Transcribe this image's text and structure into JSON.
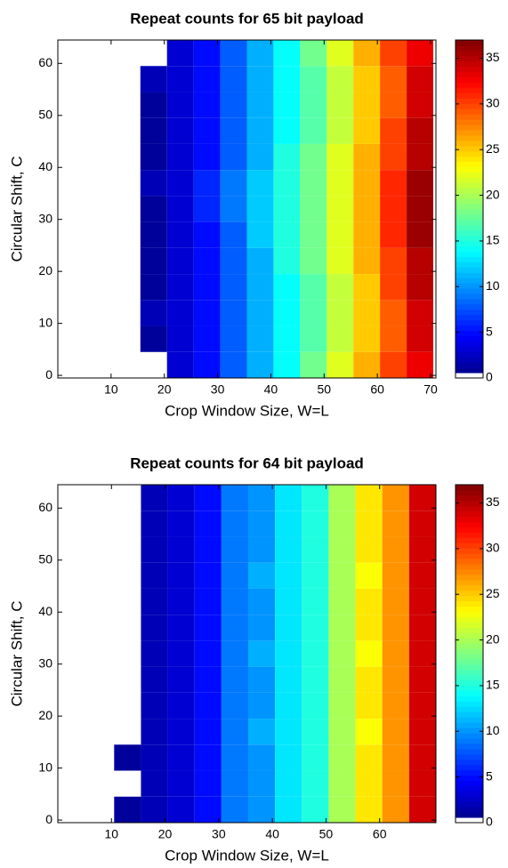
{
  "chart_data": [
    {
      "type": "heatmap",
      "title": "Repeat counts for 65 bit payload",
      "x_label": "Crop Window Size, W=L",
      "y_label": "Circular Shift, C",
      "x_edges": [
        0.5,
        5.5,
        10.5,
        15.5,
        20.5,
        25.5,
        30.5,
        35.5,
        40.5,
        45.5,
        50.5,
        55.5,
        60.5,
        65.5,
        70.5
      ],
      "y_edges": [
        -0.5,
        4.5,
        9.5,
        14.5,
        19.5,
        24.5,
        29.5,
        34.5,
        39.5,
        44.5,
        49.5,
        54.5,
        59.5,
        64.5
      ],
      "z": [
        [
          null,
          null,
          null,
          null,
          3,
          5,
          8,
          11,
          14,
          18,
          22,
          26,
          30,
          33
        ],
        [
          null,
          null,
          null,
          1,
          3,
          5,
          8,
          11,
          14,
          17,
          21,
          25,
          29,
          34
        ],
        [
          null,
          null,
          null,
          2,
          3,
          5,
          8,
          11,
          14,
          17,
          21,
          25,
          29,
          34
        ],
        [
          null,
          null,
          null,
          1,
          3,
          5,
          8,
          11,
          14,
          17,
          21,
          25,
          30,
          35
        ],
        [
          null,
          null,
          null,
          1,
          3,
          5,
          8,
          11,
          15,
          18,
          22,
          26,
          30,
          35
        ],
        [
          null,
          null,
          null,
          1,
          3,
          5,
          8,
          12,
          15,
          18,
          22,
          26,
          31,
          36
        ],
        [
          null,
          null,
          null,
          1,
          3,
          6,
          9,
          12,
          15,
          18,
          22,
          26,
          31,
          36
        ],
        [
          null,
          null,
          null,
          2,
          3,
          6,
          9,
          12,
          15,
          18,
          22,
          26,
          31,
          36
        ],
        [
          null,
          null,
          null,
          1,
          3,
          5,
          8,
          11,
          15,
          18,
          22,
          26,
          30,
          35
        ],
        [
          null,
          null,
          null,
          1,
          3,
          5,
          8,
          11,
          14,
          17,
          21,
          25,
          30,
          35
        ],
        [
          null,
          null,
          null,
          1,
          3,
          5,
          8,
          11,
          14,
          17,
          21,
          25,
          29,
          34
        ],
        [
          null,
          null,
          null,
          2,
          3,
          5,
          8,
          11,
          14,
          17,
          21,
          25,
          29,
          34
        ],
        [
          null,
          null,
          null,
          null,
          3,
          5,
          8,
          11,
          14,
          18,
          22,
          26,
          30,
          33
        ]
      ],
      "xlim": [
        0,
        71
      ],
      "ylim": [
        -0.5,
        64.5
      ],
      "xticks": [
        10,
        20,
        30,
        40,
        50,
        60,
        70
      ],
      "yticks": [
        0,
        10,
        20,
        30,
        40,
        50,
        60
      ],
      "colormap": "jet",
      "clim": [
        0,
        37
      ],
      "cticks": [
        0,
        5,
        10,
        15,
        20,
        25,
        30,
        35
      ]
    },
    {
      "type": "heatmap",
      "title": "Repeat counts for 64 bit payload",
      "x_label": "Crop Window Size, W=L",
      "y_label": "Circular Shift, C",
      "x_edges": [
        0.5,
        5.5,
        10.5,
        15.5,
        20.5,
        25.5,
        30.5,
        35.5,
        40.5,
        45.5,
        50.5,
        55.5,
        60.5,
        65.5,
        70.5
      ],
      "y_edges": [
        -0.5,
        4.5,
        9.5,
        14.5,
        19.5,
        24.5,
        29.5,
        34.5,
        39.5,
        44.5,
        49.5,
        54.5,
        59.5,
        64.5
      ],
      "z": [
        [
          null,
          null,
          1,
          2,
          3,
          5,
          9,
          10,
          13,
          15,
          20,
          24,
          27,
          34
        ],
        [
          null,
          null,
          null,
          2,
          3,
          5,
          9,
          10,
          13,
          15,
          20,
          24,
          27,
          34
        ],
        [
          null,
          null,
          1,
          2,
          3,
          5,
          9,
          10,
          13,
          15,
          20,
          24,
          27,
          34
        ],
        [
          null,
          null,
          null,
          2,
          3,
          5,
          9,
          11,
          13,
          15,
          20,
          23,
          27,
          34
        ],
        [
          null,
          null,
          null,
          2,
          3,
          5,
          9,
          10,
          13,
          15,
          20,
          24,
          27,
          34
        ],
        [
          null,
          null,
          null,
          2,
          3,
          5,
          9,
          10,
          13,
          15,
          20,
          24,
          27,
          34
        ],
        [
          null,
          null,
          null,
          2,
          3,
          5,
          9,
          11,
          13,
          15,
          20,
          23,
          27,
          34
        ],
        [
          null,
          null,
          null,
          2,
          3,
          5,
          9,
          10,
          13,
          15,
          20,
          24,
          27,
          34
        ],
        [
          null,
          null,
          null,
          2,
          3,
          5,
          9,
          10,
          13,
          15,
          20,
          24,
          27,
          34
        ],
        [
          null,
          null,
          null,
          2,
          3,
          5,
          9,
          11,
          13,
          15,
          20,
          23,
          27,
          34
        ],
        [
          null,
          null,
          null,
          2,
          3,
          5,
          9,
          10,
          13,
          15,
          20,
          24,
          27,
          34
        ],
        [
          null,
          null,
          null,
          2,
          3,
          5,
          9,
          10,
          13,
          15,
          20,
          24,
          27,
          34
        ],
        [
          null,
          null,
          null,
          2,
          3,
          5,
          9,
          10,
          13,
          15,
          20,
          24,
          27,
          34
        ]
      ],
      "xlim": [
        0,
        70.5
      ],
      "ylim": [
        -0.5,
        64.5
      ],
      "xticks": [
        10,
        20,
        30,
        40,
        50,
        60
      ],
      "yticks": [
        0,
        10,
        20,
        30,
        40,
        50,
        60
      ],
      "colormap": "jet",
      "clim": [
        0,
        37
      ],
      "cticks": [
        0,
        5,
        10,
        15,
        20,
        25,
        30,
        35
      ]
    }
  ]
}
